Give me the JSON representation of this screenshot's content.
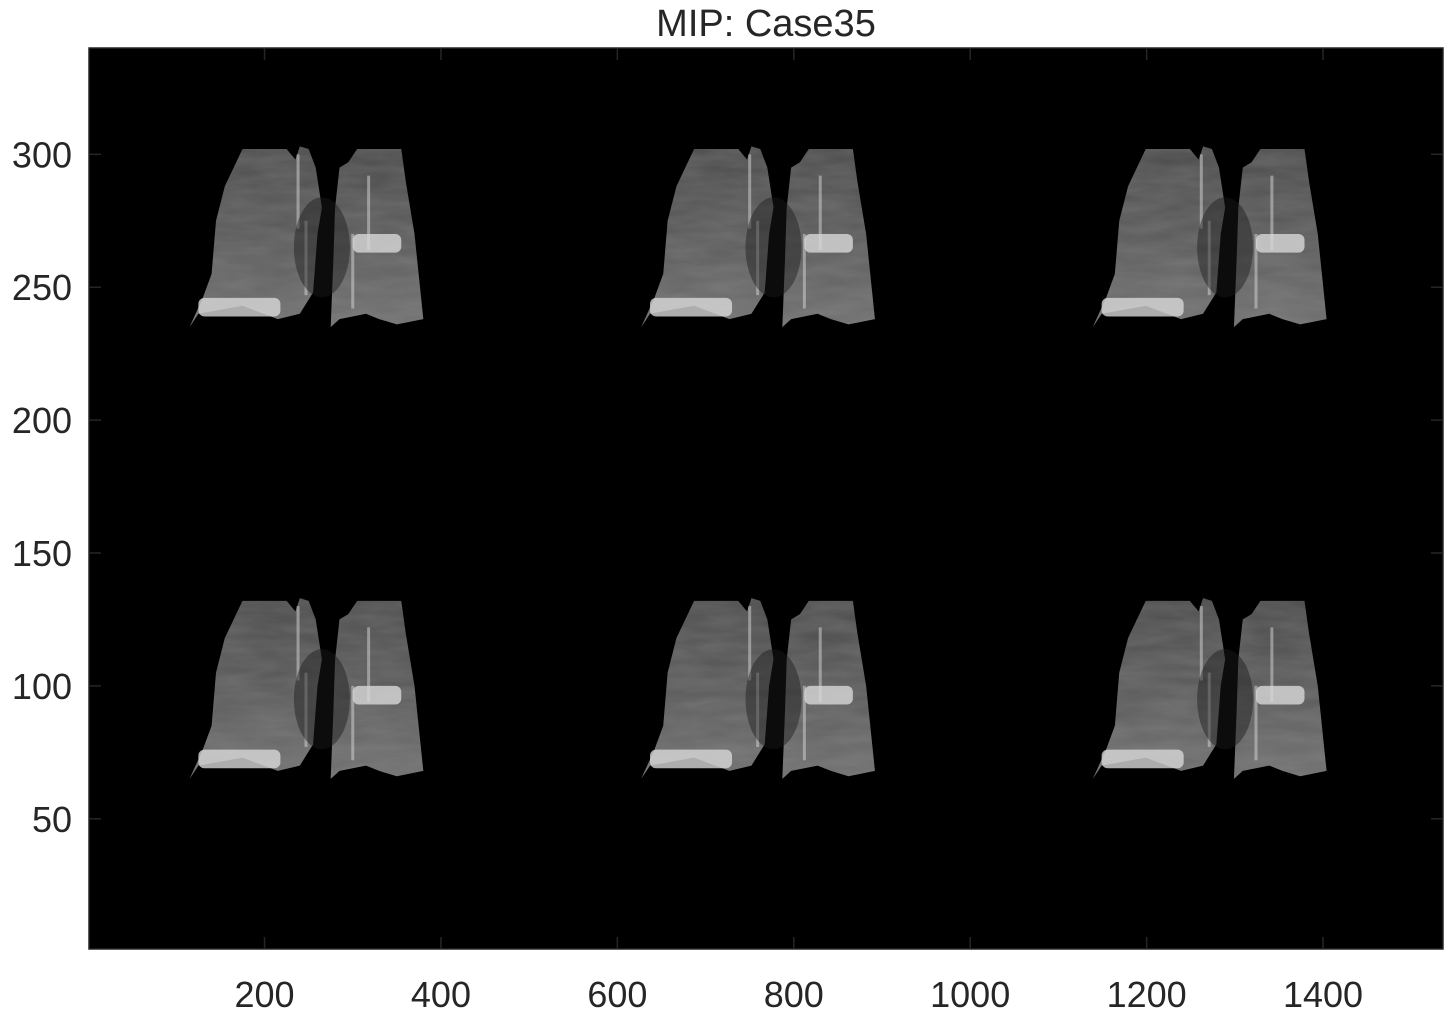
{
  "figure": {
    "title": "MIP: Case35",
    "colors": {
      "background": "#ffffff",
      "image_background": "#000000",
      "text": "#262626",
      "tissue_dark": "#3a3a3a",
      "tissue_mid": "#6e6e6e",
      "tissue_bright": "#d8d8d8"
    }
  },
  "axes": {
    "x_range": [
      1,
      1536
    ],
    "y_range": [
      1,
      340
    ],
    "x_ticks": [
      200,
      400,
      600,
      800,
      1000,
      1200,
      1400
    ],
    "y_ticks": [
      50,
      100,
      150,
      200,
      250,
      300
    ],
    "x_tick_labels": [
      "200",
      "400",
      "600",
      "800",
      "1000",
      "1200",
      "1400"
    ],
    "y_tick_labels": [
      "50",
      "100",
      "150",
      "200",
      "250",
      "300"
    ]
  },
  "montage": {
    "rows": 2,
    "cols": 3,
    "tile_width": 512,
    "row_base_y": [
      65,
      235
    ],
    "col_offset_x": [
      0,
      512,
      1024
    ],
    "left_lung": [
      [
        115,
        65
      ],
      [
        125,
        70
      ],
      [
        175,
        73
      ],
      [
        215,
        68
      ],
      [
        240,
        70
      ],
      [
        255,
        78
      ],
      [
        260,
        100
      ],
      [
        265,
        110
      ],
      [
        258,
        125
      ],
      [
        250,
        132
      ],
      [
        240,
        133
      ],
      [
        235,
        128
      ],
      [
        225,
        132
      ],
      [
        175,
        132
      ],
      [
        155,
        118
      ],
      [
        145,
        105
      ],
      [
        140,
        85
      ],
      [
        130,
        76
      ]
    ],
    "right_lung": [
      [
        275,
        65
      ],
      [
        285,
        68
      ],
      [
        315,
        70
      ],
      [
        330,
        68
      ],
      [
        350,
        66
      ],
      [
        380,
        68
      ],
      [
        370,
        100
      ],
      [
        360,
        120
      ],
      [
        355,
        132
      ],
      [
        325,
        132
      ],
      [
        305,
        132
      ],
      [
        295,
        127
      ],
      [
        285,
        125
      ],
      [
        280,
        110
      ],
      [
        278,
        90
      ]
    ],
    "bright_bands": [
      {
        "x1": 125,
        "x2": 218,
        "y1": 69,
        "y2": 76
      },
      {
        "x1": 300,
        "x2": 355,
        "y1": 93,
        "y2": 100
      }
    ]
  }
}
